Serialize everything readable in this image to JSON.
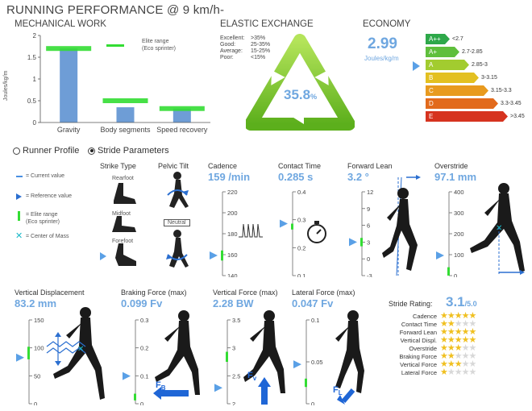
{
  "header": {
    "title": "RUNNING PERFORMANCE @ 9  km/h-"
  },
  "mechanical": {
    "title": "MECHANICAL WORK",
    "ylabel": "Joules/kg/m",
    "legend": "Elite range\n(Eco sprinter)",
    "chart_data": {
      "type": "bar",
      "categories": [
        "Gravity",
        "Body segments",
        "Speed recovery"
      ],
      "values": [
        1.7,
        0.35,
        0.32
      ],
      "elite": [
        1.7,
        0.5,
        0.32
      ],
      "ylim": [
        0,
        2
      ],
      "yticks": [
        "0",
        "0.5",
        "1",
        "1.5",
        "2"
      ]
    }
  },
  "elastic": {
    "title": "ELASTIC EXCHANGE",
    "value": "35.8",
    "unit": "%",
    "legend": [
      {
        "label": "Excellent:",
        "range": ">35%"
      },
      {
        "label": "Good:",
        "range": "25-35%"
      },
      {
        "label": "Average:",
        "range": "15-25%"
      },
      {
        "label": "Poor:",
        "range": "<15%"
      }
    ]
  },
  "economy": {
    "title": "ECONOMY",
    "value": "2.99",
    "unit": "Joules/kg/m",
    "classes": [
      {
        "label": "A++",
        "range": "<2.7",
        "color": "#2ea84a"
      },
      {
        "label": "A+",
        "range": "2.7-2.85",
        "color": "#5fbf3c"
      },
      {
        "label": "A",
        "range": "2.85-3",
        "color": "#a2cc2f"
      },
      {
        "label": "B",
        "range": "3-3.15",
        "color": "#e3c021"
      },
      {
        "label": "C",
        "range": "3.15-3.3",
        "color": "#e89a1f"
      },
      {
        "label": "D",
        "range": "3.3-3.45",
        "color": "#e26a1c"
      },
      {
        "label": "E",
        "range": ">3.45",
        "color": "#d6331f"
      }
    ]
  },
  "tabs": {
    "runner": "Runner Profile",
    "stride": "Stride Parameters"
  },
  "legend": {
    "current": "= Current value",
    "reference": "= Reference value",
    "elite": "= Elite range\n(Eco sprinter)",
    "com": "= Center of Mass"
  },
  "strike": {
    "title": "Strike Type",
    "rearfoot": "Rearfoot",
    "midfoot": "Midfoot",
    "forefoot": "Forefoot"
  },
  "pelvic": {
    "title": "Pelvic Tilt",
    "neutral": "Neutral"
  },
  "cadence": {
    "title": "Cadence",
    "value": "159 /min",
    "ticks": [
      "220",
      "200",
      "180",
      "160",
      "140"
    ]
  },
  "contact": {
    "title": "Contact Time",
    "value": "0.285 s",
    "ticks": [
      "0.4",
      "0.3",
      "0.2",
      "0.1"
    ]
  },
  "lean": {
    "title": "Forward Lean",
    "value": "3.2 °",
    "ticks": [
      "12",
      "9",
      "6",
      "3",
      "0",
      "-3"
    ]
  },
  "overstride": {
    "title": "Overstride",
    "value": "97.1 mm",
    "ticks": [
      "400",
      "300",
      "200",
      "100",
      "0"
    ]
  },
  "vdisp": {
    "title": "Vertical Displacement",
    "value": "83.2 mm",
    "ticks": [
      "150",
      "100",
      "50",
      "0"
    ]
  },
  "braking": {
    "title": "Braking Force (max)",
    "value": "0.099 Fv",
    "ticks": [
      "0.3",
      "0.2",
      "0.1",
      "0"
    ],
    "force": "F",
    "sub": "B"
  },
  "vforce": {
    "title": "Vertical Force (max)",
    "value": "2.28 BW",
    "ticks": [
      "3.5",
      "3",
      "2.5",
      "2"
    ],
    "force": "F",
    "sub": "v"
  },
  "lforce": {
    "title": "Lateral Force (max)",
    "value": "0.047 Fv",
    "ticks": [
      "0.1",
      "0.05",
      "0"
    ],
    "force": "F",
    "sub": "L"
  },
  "rating": {
    "label": "Stride Rating:",
    "value": "3.1",
    "max": "/5.0",
    "items": [
      {
        "name": "Cadence",
        "stars": 5
      },
      {
        "name": "Contact Time",
        "stars": 2
      },
      {
        "name": "Forward Lean",
        "stars": 5
      },
      {
        "name": "Vertical Displ.",
        "stars": 5
      },
      {
        "name": "Overstride",
        "stars": 3
      },
      {
        "name": "Braking Force",
        "stars": 2
      },
      {
        "name": "Vertical Force",
        "stars": 3
      },
      {
        "name": "Lateral Force",
        "stars": 1
      }
    ]
  }
}
